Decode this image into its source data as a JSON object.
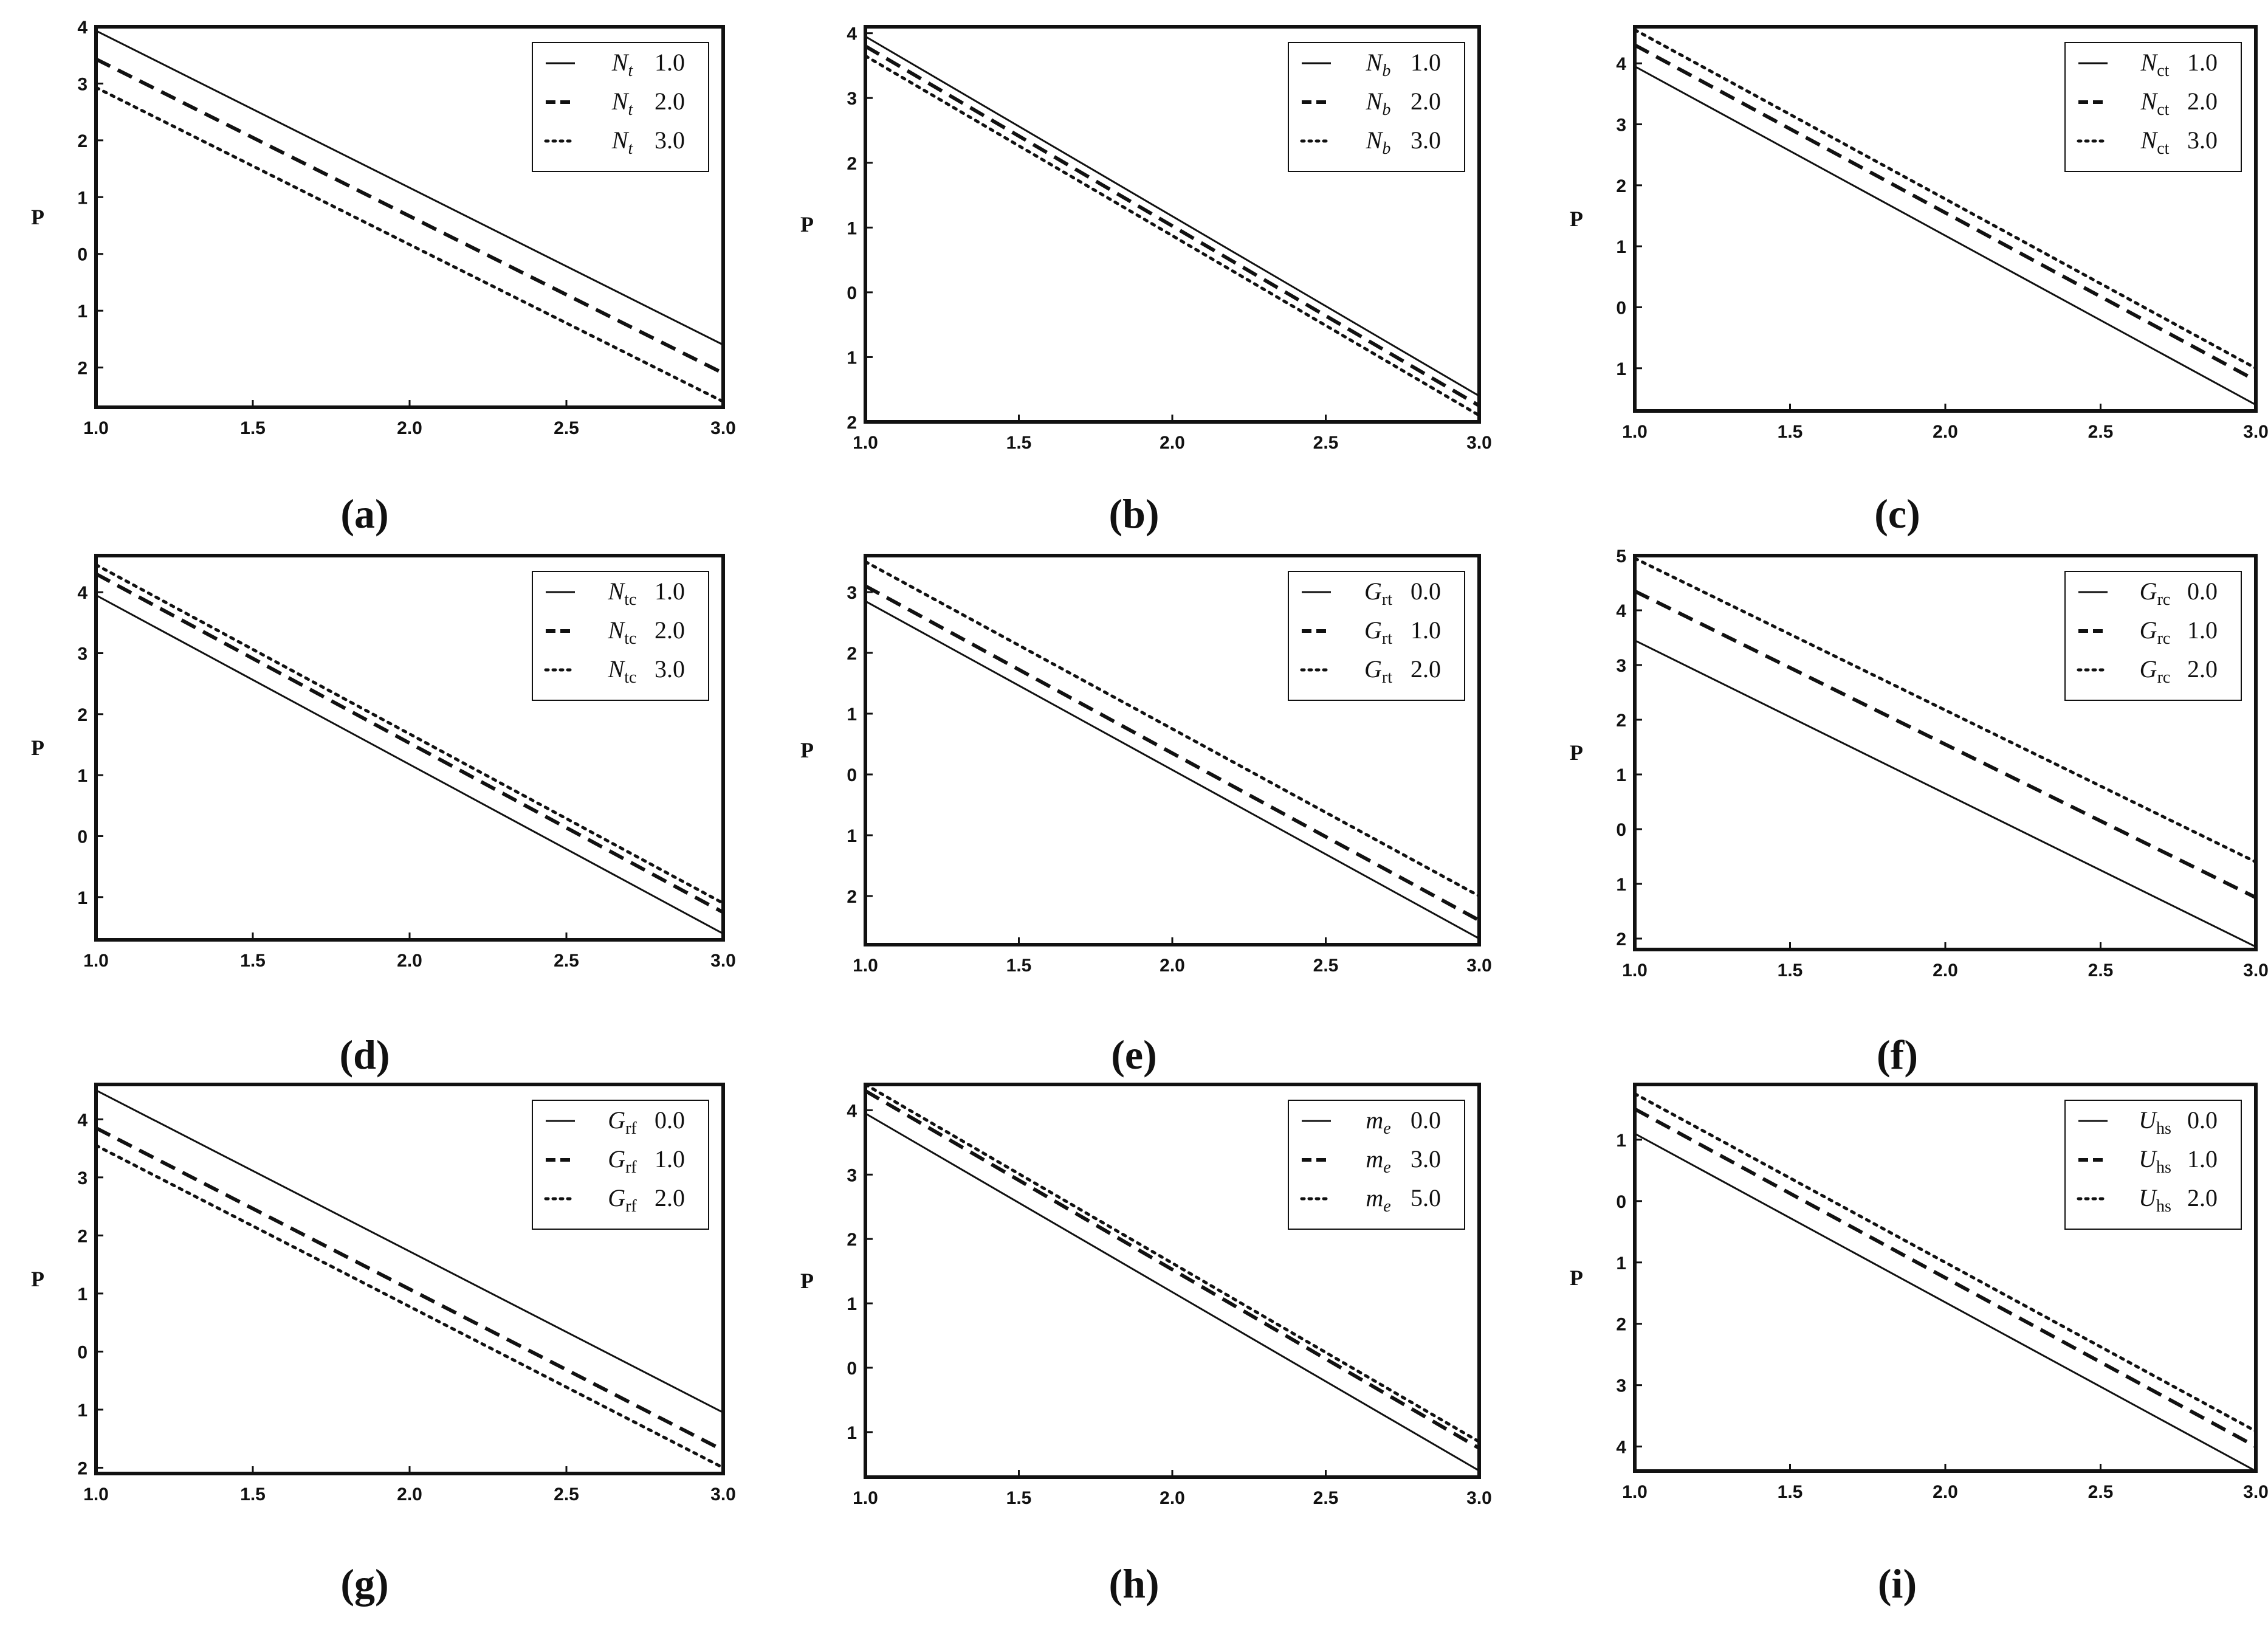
{
  "panel_labels": [
    "(a)",
    "(b)",
    "(c)",
    "(d)",
    "(e)",
    "(f)",
    "(g)",
    "(h)",
    "(i)"
  ],
  "chart_data": [
    {
      "type": "line",
      "panel": "a",
      "ylabel": "P",
      "xlim": [
        1.0,
        3.0
      ],
      "ylim": [
        -2.7,
        4.0
      ],
      "xticks": [
        "1.0",
        "1.5",
        "2.0",
        "2.5",
        "3.0"
      ],
      "yticks": [
        {
          "v": 4,
          "t": "4"
        },
        {
          "v": 3,
          "t": "3"
        },
        {
          "v": 2,
          "t": "2"
        },
        {
          "v": 1,
          "t": "1"
        },
        {
          "v": 0,
          "t": "0"
        },
        {
          "v": -1,
          "t": "1"
        },
        {
          "v": -2,
          "t": "2"
        }
      ],
      "legend": {
        "position": "top-right",
        "entries": [
          {
            "sym": "N",
            "sub": "t",
            "val": "1.0"
          },
          {
            "sym": "N",
            "sub": "t",
            "val": "2.0"
          },
          {
            "sym": "N",
            "sub": "t",
            "val": "3.0"
          }
        ]
      },
      "series": [
        {
          "style": "solid",
          "x": [
            1.0,
            3.0
          ],
          "y": [
            3.93,
            -1.6
          ]
        },
        {
          "style": "dashed",
          "x": [
            1.0,
            3.0
          ],
          "y": [
            3.43,
            -2.1
          ]
        },
        {
          "style": "dotted",
          "x": [
            1.0,
            3.0
          ],
          "y": [
            2.93,
            -2.6
          ]
        }
      ]
    },
    {
      "type": "line",
      "panel": "b",
      "ylabel": "P",
      "xlim": [
        1.0,
        3.0
      ],
      "ylim": [
        -2.0,
        4.1
      ],
      "xticks": [
        "1.0",
        "1.5",
        "2.0",
        "2.5",
        "3.0"
      ],
      "yticks": [
        {
          "v": 4,
          "t": "4"
        },
        {
          "v": 3,
          "t": "3"
        },
        {
          "v": 2,
          "t": "2"
        },
        {
          "v": 1,
          "t": "1"
        },
        {
          "v": 0,
          "t": "0"
        },
        {
          "v": -1,
          "t": "1"
        },
        {
          "v": -2,
          "t": "2"
        }
      ],
      "legend": {
        "position": "top-right",
        "entries": [
          {
            "sym": "N",
            "sub": "b",
            "val": "1.0"
          },
          {
            "sym": "N",
            "sub": "b",
            "val": "2.0"
          },
          {
            "sym": "N",
            "sub": "b",
            "val": "3.0"
          }
        ]
      },
      "series": [
        {
          "style": "solid",
          "x": [
            1.0,
            3.0
          ],
          "y": [
            3.95,
            -1.6
          ]
        },
        {
          "style": "dashed",
          "x": [
            1.0,
            3.0
          ],
          "y": [
            3.8,
            -1.75
          ]
        },
        {
          "style": "dotted",
          "x": [
            1.0,
            3.0
          ],
          "y": [
            3.65,
            -1.9
          ]
        }
      ]
    },
    {
      "type": "line",
      "panel": "c",
      "ylabel": "P",
      "xlim": [
        1.0,
        3.0
      ],
      "ylim": [
        -1.7,
        4.6
      ],
      "xticks": [
        "1.0",
        "1.5",
        "2.0",
        "2.5",
        "3.0"
      ],
      "yticks": [
        {
          "v": 4,
          "t": "4"
        },
        {
          "v": 3,
          "t": "3"
        },
        {
          "v": 2,
          "t": "2"
        },
        {
          "v": 1,
          "t": "1"
        },
        {
          "v": 0,
          "t": "0"
        },
        {
          "v": -1,
          "t": "1"
        }
      ],
      "legend": {
        "position": "top-right",
        "entries": [
          {
            "sym": "N",
            "sub": "ct",
            "val": "1.0"
          },
          {
            "sym": "N",
            "sub": "ct",
            "val": "2.0"
          },
          {
            "sym": "N",
            "sub": "ct",
            "val": "3.0"
          }
        ]
      },
      "series": [
        {
          "style": "solid",
          "x": [
            1.0,
            3.0
          ],
          "y": [
            3.95,
            -1.6
          ]
        },
        {
          "style": "dashed",
          "x": [
            1.0,
            3.0
          ],
          "y": [
            4.3,
            -1.2
          ]
        },
        {
          "style": "dotted",
          "x": [
            1.0,
            3.0
          ],
          "y": [
            4.55,
            -1.0
          ]
        }
      ]
    },
    {
      "type": "line",
      "panel": "d",
      "ylabel": "P",
      "xlim": [
        1.0,
        3.0
      ],
      "ylim": [
        -1.7,
        4.6
      ],
      "xticks": [
        "1.0",
        "1.5",
        "2.0",
        "2.5",
        "3.0"
      ],
      "yticks": [
        {
          "v": 4,
          "t": "4"
        },
        {
          "v": 3,
          "t": "3"
        },
        {
          "v": 2,
          "t": "2"
        },
        {
          "v": 1,
          "t": "1"
        },
        {
          "v": 0,
          "t": "0"
        },
        {
          "v": -1,
          "t": "1"
        }
      ],
      "legend": {
        "position": "top-right",
        "entries": [
          {
            "sym": "N",
            "sub": "tc",
            "val": "1.0"
          },
          {
            "sym": "N",
            "sub": "tc",
            "val": "2.0"
          },
          {
            "sym": "N",
            "sub": "tc",
            "val": "3.0"
          }
        ]
      },
      "series": [
        {
          "style": "solid",
          "x": [
            1.0,
            3.0
          ],
          "y": [
            3.95,
            -1.6
          ]
        },
        {
          "style": "dashed",
          "x": [
            1.0,
            3.0
          ],
          "y": [
            4.3,
            -1.25
          ]
        },
        {
          "style": "dotted",
          "x": [
            1.0,
            3.0
          ],
          "y": [
            4.45,
            -1.1
          ]
        }
      ]
    },
    {
      "type": "line",
      "panel": "e",
      "ylabel": "P",
      "xlim": [
        1.0,
        3.0
      ],
      "ylim": [
        -2.8,
        3.6
      ],
      "xticks": [
        "1.0",
        "1.5",
        "2.0",
        "2.5",
        "3.0"
      ],
      "yticks": [
        {
          "v": 3,
          "t": "3"
        },
        {
          "v": 2,
          "t": "2"
        },
        {
          "v": 1,
          "t": "1"
        },
        {
          "v": 0,
          "t": "0"
        },
        {
          "v": -1,
          "t": "1"
        },
        {
          "v": -2,
          "t": "2"
        }
      ],
      "legend": {
        "position": "top-right",
        "entries": [
          {
            "sym": "G",
            "sub": "rt",
            "val": "0.0"
          },
          {
            "sym": "G",
            "sub": "rt",
            "val": "1.0"
          },
          {
            "sym": "G",
            "sub": "rt",
            "val": "2.0"
          }
        ]
      },
      "series": [
        {
          "style": "solid",
          "x": [
            1.0,
            3.0
          ],
          "y": [
            2.85,
            -2.7
          ]
        },
        {
          "style": "dashed",
          "x": [
            1.0,
            3.0
          ],
          "y": [
            3.1,
            -2.4
          ]
        },
        {
          "style": "dotted",
          "x": [
            1.0,
            3.0
          ],
          "y": [
            3.5,
            -2.0
          ]
        }
      ]
    },
    {
      "type": "line",
      "panel": "f",
      "ylabel": "P",
      "xlim": [
        1.0,
        3.0
      ],
      "ylim": [
        -2.2,
        5.0
      ],
      "xticks": [
        "1.0",
        "1.5",
        "2.0",
        "2.5",
        "3.0"
      ],
      "yticks": [
        {
          "v": 5,
          "t": "5"
        },
        {
          "v": 4,
          "t": "4"
        },
        {
          "v": 3,
          "t": "3"
        },
        {
          "v": 2,
          "t": "2"
        },
        {
          "v": 1,
          "t": "1"
        },
        {
          "v": 0,
          "t": "0"
        },
        {
          "v": -1,
          "t": "1"
        },
        {
          "v": -2,
          "t": "2"
        }
      ],
      "legend": {
        "position": "top-right",
        "entries": [
          {
            "sym": "G",
            "sub": "rc",
            "val": "0.0"
          },
          {
            "sym": "G",
            "sub": "rc",
            "val": "1.0"
          },
          {
            "sym": "G",
            "sub": "rc",
            "val": "2.0"
          }
        ]
      },
      "series": [
        {
          "style": "solid",
          "x": [
            1.0,
            3.0
          ],
          "y": [
            3.45,
            -2.15
          ]
        },
        {
          "style": "dashed",
          "x": [
            1.0,
            3.0
          ],
          "y": [
            4.35,
            -1.25
          ]
        },
        {
          "style": "dotted",
          "x": [
            1.0,
            3.0
          ],
          "y": [
            4.95,
            -0.6
          ]
        }
      ]
    },
    {
      "type": "line",
      "panel": "g",
      "ylabel": "P",
      "xlim": [
        1.0,
        3.0
      ],
      "ylim": [
        -2.1,
        4.6
      ],
      "xticks": [
        "1.0",
        "1.5",
        "2.0",
        "2.5",
        "3.0"
      ],
      "yticks": [
        {
          "v": 4,
          "t": "4"
        },
        {
          "v": 3,
          "t": "3"
        },
        {
          "v": 2,
          "t": "2"
        },
        {
          "v": 1,
          "t": "1"
        },
        {
          "v": 0,
          "t": "0"
        },
        {
          "v": -1,
          "t": "1"
        },
        {
          "v": -2,
          "t": "2"
        }
      ],
      "legend": {
        "position": "top-right",
        "entries": [
          {
            "sym": "G",
            "sub": "rf",
            "val": "0.0"
          },
          {
            "sym": "G",
            "sub": "rf",
            "val": "1.0"
          },
          {
            "sym": "G",
            "sub": "rf",
            "val": "2.0"
          }
        ]
      },
      "series": [
        {
          "style": "solid",
          "x": [
            1.0,
            3.0
          ],
          "y": [
            4.5,
            -1.05
          ]
        },
        {
          "style": "dashed",
          "x": [
            1.0,
            3.0
          ],
          "y": [
            3.85,
            -1.7
          ]
        },
        {
          "style": "dotted",
          "x": [
            1.0,
            3.0
          ],
          "y": [
            3.55,
            -2.0
          ]
        }
      ]
    },
    {
      "type": "line",
      "panel": "h",
      "ylabel": "P",
      "xlim": [
        1.0,
        3.0
      ],
      "ylim": [
        -1.7,
        4.4
      ],
      "xticks": [
        "1.0",
        "1.5",
        "2.0",
        "2.5",
        "3.0"
      ],
      "yticks": [
        {
          "v": 4,
          "t": "4"
        },
        {
          "v": 3,
          "t": "3"
        },
        {
          "v": 2,
          "t": "2"
        },
        {
          "v": 1,
          "t": "1"
        },
        {
          "v": 0,
          "t": "0"
        },
        {
          "v": -1,
          "t": "1"
        }
      ],
      "legend": {
        "position": "top-right",
        "entries": [
          {
            "sym": "m",
            "sub": "e",
            "val": "0.0"
          },
          {
            "sym": "m",
            "sub": "e",
            "val": "3.0"
          },
          {
            "sym": "m",
            "sub": "e",
            "val": "5.0"
          }
        ]
      },
      "series": [
        {
          "style": "solid",
          "x": [
            1.0,
            3.0
          ],
          "y": [
            3.95,
            -1.6
          ]
        },
        {
          "style": "dashed",
          "x": [
            1.0,
            3.0
          ],
          "y": [
            4.3,
            -1.25
          ]
        },
        {
          "style": "dotted",
          "x": [
            1.0,
            3.0
          ],
          "y": [
            4.4,
            -1.15
          ]
        }
      ]
    },
    {
      "type": "line",
      "panel": "i",
      "ylabel": "P",
      "xlim": [
        1.0,
        3.0
      ],
      "ylim": [
        -4.4,
        1.9
      ],
      "xticks": [
        "1.0",
        "1.5",
        "2.0",
        "2.5",
        "3.0"
      ],
      "yticks": [
        {
          "v": 1,
          "t": "1"
        },
        {
          "v": 0,
          "t": "0"
        },
        {
          "v": -1,
          "t": "1"
        },
        {
          "v": -2,
          "t": "2"
        },
        {
          "v": -3,
          "t": "3"
        },
        {
          "v": -4,
          "t": "4"
        }
      ],
      "legend": {
        "position": "top-right",
        "entries": [
          {
            "sym": "U",
            "sub": "hs",
            "val": "0.0"
          },
          {
            "sym": "U",
            "sub": "hs",
            "val": "1.0"
          },
          {
            "sym": "U",
            "sub": "hs",
            "val": "2.0"
          }
        ]
      },
      "series": [
        {
          "style": "solid",
          "x": [
            1.0,
            3.0
          ],
          "y": [
            1.1,
            -4.4
          ]
        },
        {
          "style": "dashed",
          "x": [
            1.0,
            3.0
          ],
          "y": [
            1.5,
            -4.0
          ]
        },
        {
          "style": "dotted",
          "x": [
            1.0,
            3.0
          ],
          "y": [
            1.75,
            -3.75
          ]
        }
      ]
    }
  ]
}
